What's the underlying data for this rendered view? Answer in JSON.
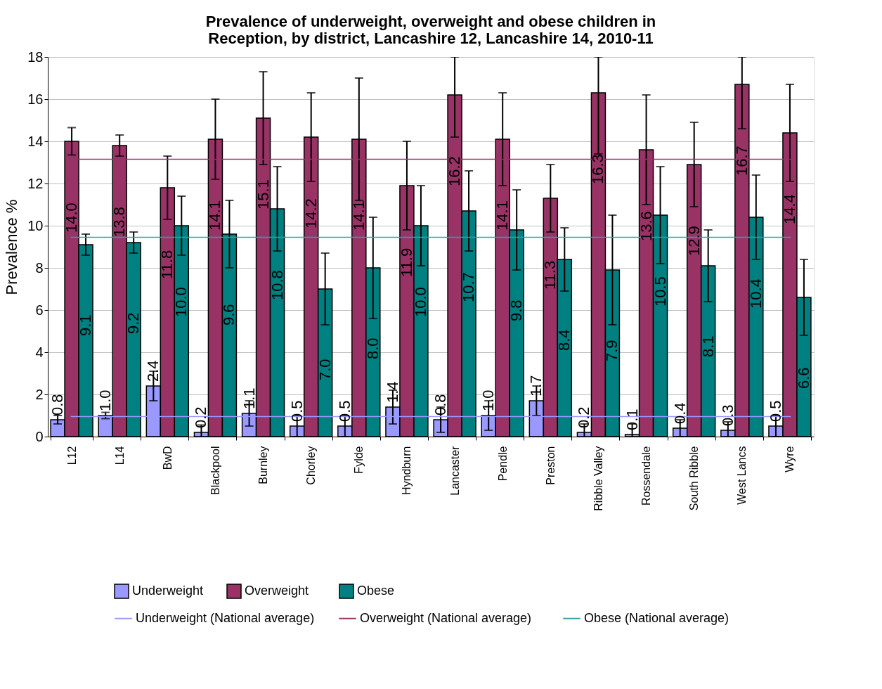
{
  "chart_data": {
    "type": "bar",
    "title": [
      "Prevalence of underweight, overweight and obese children in",
      "Reception, by district, Lancashire 12, Lancashire 14, 2010-11"
    ],
    "ylabel": "Prevalence %",
    "categories": [
      "L12",
      "L14",
      "BwD",
      "Blackpool",
      "Burnley",
      "Chorley",
      "Fylde",
      "Hyndburn",
      "Lancaster",
      "Pendle",
      "Preston",
      "Ribble Valley",
      "Rossendale",
      "South Ribble",
      "West Lancs",
      "Wyre"
    ],
    "series": [
      {
        "name": "Underweight",
        "color": "#9999ff",
        "values": [
          0.8,
          1.0,
          2.4,
          0.2,
          1.1,
          0.5,
          0.5,
          1.4,
          0.8,
          1.0,
          1.7,
          0.2,
          0.1,
          0.4,
          0.3,
          0.5
        ],
        "value_labels": [
          "0.8",
          "1.0",
          "2.4",
          "0.2",
          "1.1",
          "0.5",
          "0.5",
          "1.4",
          "0.8",
          "1.0",
          "1.7",
          "0.2",
          "0.1",
          "0.4",
          "0.3",
          "0.5"
        ],
        "errors": [
          0.2,
          0.15,
          0.7,
          0.35,
          0.6,
          0.5,
          0.5,
          0.8,
          0.6,
          0.7,
          0.7,
          0.4,
          0.5,
          0.4,
          0.4,
          0.5
        ]
      },
      {
        "name": "Overweight",
        "color": "#993366",
        "values": [
          14.0,
          13.8,
          11.8,
          14.1,
          15.1,
          14.2,
          14.1,
          11.9,
          16.2,
          14.1,
          11.3,
          16.3,
          13.6,
          12.9,
          16.7,
          14.4
        ],
        "value_labels": [
          "14.0",
          "13.8",
          "11.8",
          "14.1",
          "15.1",
          "14.2",
          "14.1",
          "11.9",
          "16.2",
          "14.1",
          "11.3",
          "16.3",
          "13.6",
          "12.9",
          "16.7",
          "14.4"
        ],
        "errors": [
          0.65,
          0.5,
          1.5,
          1.9,
          2.2,
          2.1,
          2.9,
          2.1,
          [
            14.2,
            18
          ],
          2.2,
          1.6,
          [
            13.4,
            18
          ],
          2.6,
          2.0,
          [
            14.6,
            18
          ],
          2.3
        ]
      },
      {
        "name": "Obese",
        "color": "#008080",
        "values": [
          9.1,
          9.2,
          10.0,
          9.6,
          10.8,
          7.0,
          8.0,
          10.0,
          10.7,
          9.8,
          8.4,
          7.9,
          10.5,
          8.1,
          10.4,
          6.6
        ],
        "value_labels": [
          "9.1",
          "9.2",
          "10.0",
          "9.6",
          "10.8",
          "7.0",
          "8.0",
          "10.0",
          "10.7",
          "9.8",
          "8.4",
          "7.9",
          "10.5",
          "8.1",
          "10.4",
          "6.6"
        ],
        "errors": [
          0.5,
          0.5,
          1.4,
          1.6,
          2.0,
          1.7,
          2.4,
          1.9,
          1.9,
          1.9,
          1.5,
          2.6,
          2.3,
          1.7,
          2.0,
          1.8
        ]
      }
    ],
    "ref_lines": [
      {
        "axis": "y",
        "value": 0.95,
        "label": "Underweight (National average)",
        "color": "#9999ff"
      },
      {
        "axis": "y",
        "value": 13.15,
        "label": "Overweight (National average)",
        "color": "#993366"
      },
      {
        "axis": "y",
        "value": 9.45,
        "label": "Obese (National average)",
        "color": "#33a3a3"
      }
    ],
    "ylim": [
      0,
      18
    ],
    "yticks": [
      0,
      2,
      4,
      6,
      8,
      10,
      12,
      14,
      16,
      18
    ],
    "grid": "y",
    "legend": "bottom"
  }
}
